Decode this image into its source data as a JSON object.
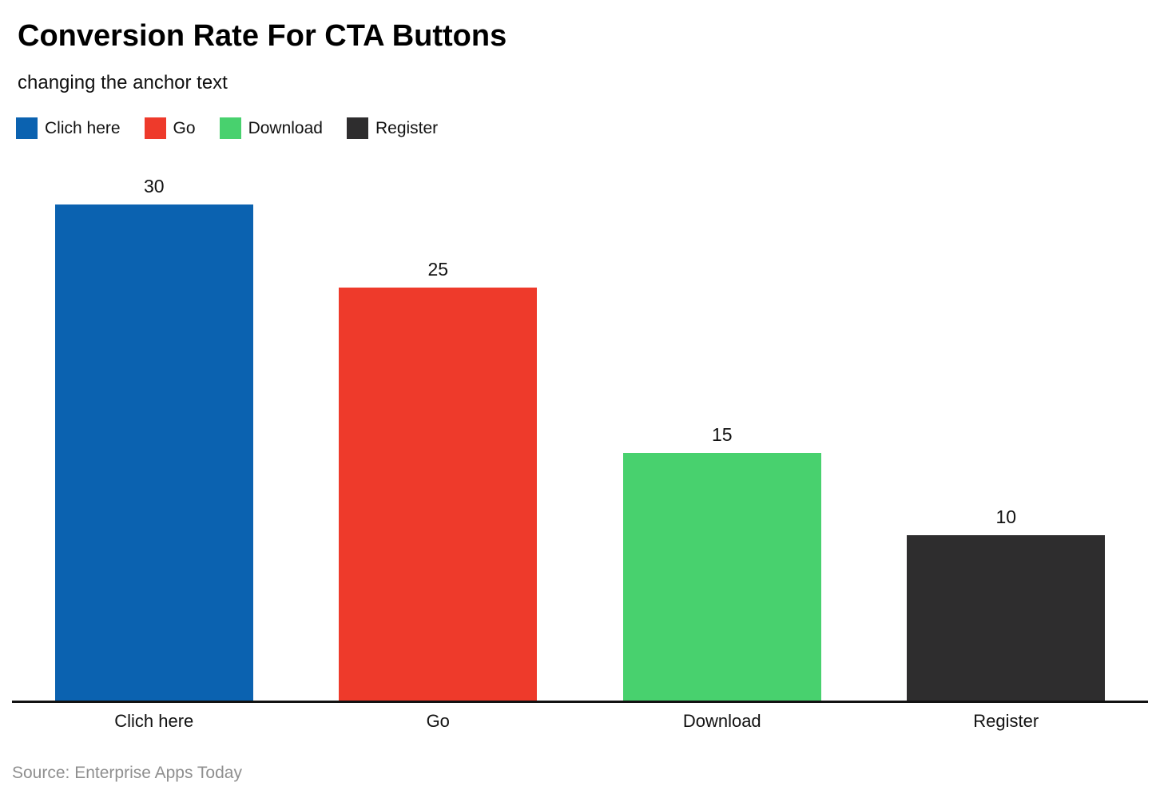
{
  "header": {
    "title": "Conversion Rate For CTA Buttons",
    "subtitle": "changing the anchor text"
  },
  "chart_data": {
    "type": "bar",
    "title": "Conversion Rate For CTA Buttons",
    "subtitle": "changing the anchor text",
    "categories": [
      "Clich here",
      "Go",
      "Download",
      "Register"
    ],
    "values": [
      30,
      25,
      15,
      10
    ],
    "value_labels": [
      "30",
      "25",
      "15",
      "10"
    ],
    "colors": [
      "#0b62b0",
      "#ee3a2b",
      "#48d16e",
      "#2e2d2e"
    ],
    "legend": [
      "Clich here",
      "Go",
      "Download",
      "Register"
    ],
    "legend_position": "top",
    "xlabel": "",
    "ylabel": "",
    "ylim": [
      0,
      30
    ],
    "grid": false,
    "axis_line_color": "#121212"
  },
  "footer": {
    "source": "Source: Enterprise Apps Today"
  }
}
